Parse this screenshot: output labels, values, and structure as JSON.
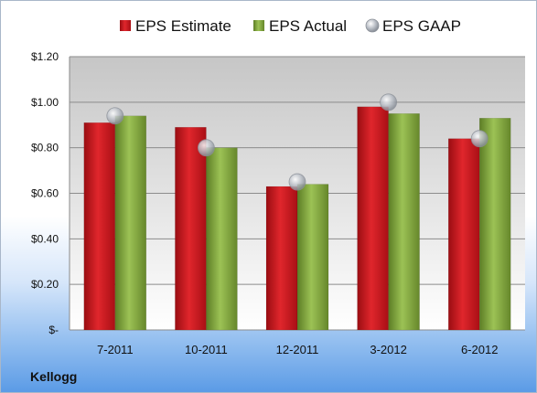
{
  "chart_data": {
    "type": "bar",
    "categories": [
      "7-2011",
      "10-2011",
      "12-2011",
      "3-2012",
      "6-2012"
    ],
    "series": [
      {
        "name": "EPS Estimate",
        "kind": "bar",
        "color": "#c8141c",
        "values": [
          0.91,
          0.89,
          0.63,
          0.98,
          0.84
        ]
      },
      {
        "name": "EPS Actual",
        "kind": "bar",
        "color": "#7da23a",
        "values": [
          0.94,
          0.8,
          0.64,
          0.95,
          0.93
        ]
      },
      {
        "name": "EPS GAAP",
        "kind": "marker",
        "color": "#b9bec6",
        "values": [
          0.94,
          0.8,
          0.65,
          1.0,
          0.84
        ]
      }
    ],
    "ylim": [
      0,
      1.2
    ],
    "yticks": [
      0,
      0.2,
      0.4,
      0.6,
      0.8,
      1.0,
      1.2
    ],
    "ytick_labels": [
      "$-",
      "$0.20",
      "$0.40",
      "$0.60",
      "$0.80",
      "$1.00",
      "$1.20"
    ],
    "grid": true,
    "legend_position": "top",
    "company": "Kellogg"
  }
}
